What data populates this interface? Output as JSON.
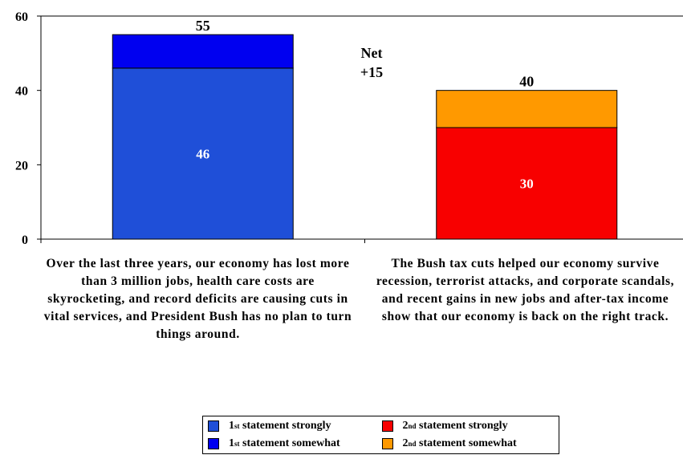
{
  "chart_data": {
    "type": "bar",
    "stacked": true,
    "categories": [
      "Over the last three years, our economy has lost more than 3 million jobs, health care costs are skyrocketing, and record deficits are causing cuts in vital services, and President Bush has no plan to turn things around.",
      "The Bush tax cuts helped our economy survive recession, terrorist attacks, and corporate scandals, and recent gains in new jobs and after-tax income show that our economy is back on the right track."
    ],
    "bars": [
      {
        "segments": [
          {
            "series": "1st statement strongly",
            "value": 46,
            "color": "#1F4FD8",
            "label": "46"
          },
          {
            "series": "1st statement somewhat",
            "value": 9,
            "color": "#0000F0",
            "label": ""
          }
        ],
        "total_label": "55"
      },
      {
        "segments": [
          {
            "series": "2nd statement strongly",
            "value": 30,
            "color": "#F80000",
            "label": "30"
          },
          {
            "series": "2nd statement somewhat",
            "value": 10,
            "color": "#FF9900",
            "label": ""
          }
        ],
        "total_label": "40"
      }
    ],
    "ylim": [
      0,
      60
    ],
    "yticks": [
      0,
      20,
      40,
      60
    ],
    "annotation": {
      "line1": "Net",
      "line2": "+15"
    },
    "legend": {
      "placement": "bottom",
      "items": [
        {
          "ord": "1",
          "sup": "st",
          "text": " statement strongly",
          "color": "#1F4FD8"
        },
        {
          "ord": "2",
          "sup": "nd",
          "text": " statement strongly",
          "color": "#F80000"
        },
        {
          "ord": "1",
          "sup": "st",
          "text": " statement somewhat",
          "color": "#0000F0"
        },
        {
          "ord": "2",
          "sup": "nd",
          "text": " statement somewhat",
          "color": "#FF9900"
        }
      ]
    },
    "grid": false
  }
}
